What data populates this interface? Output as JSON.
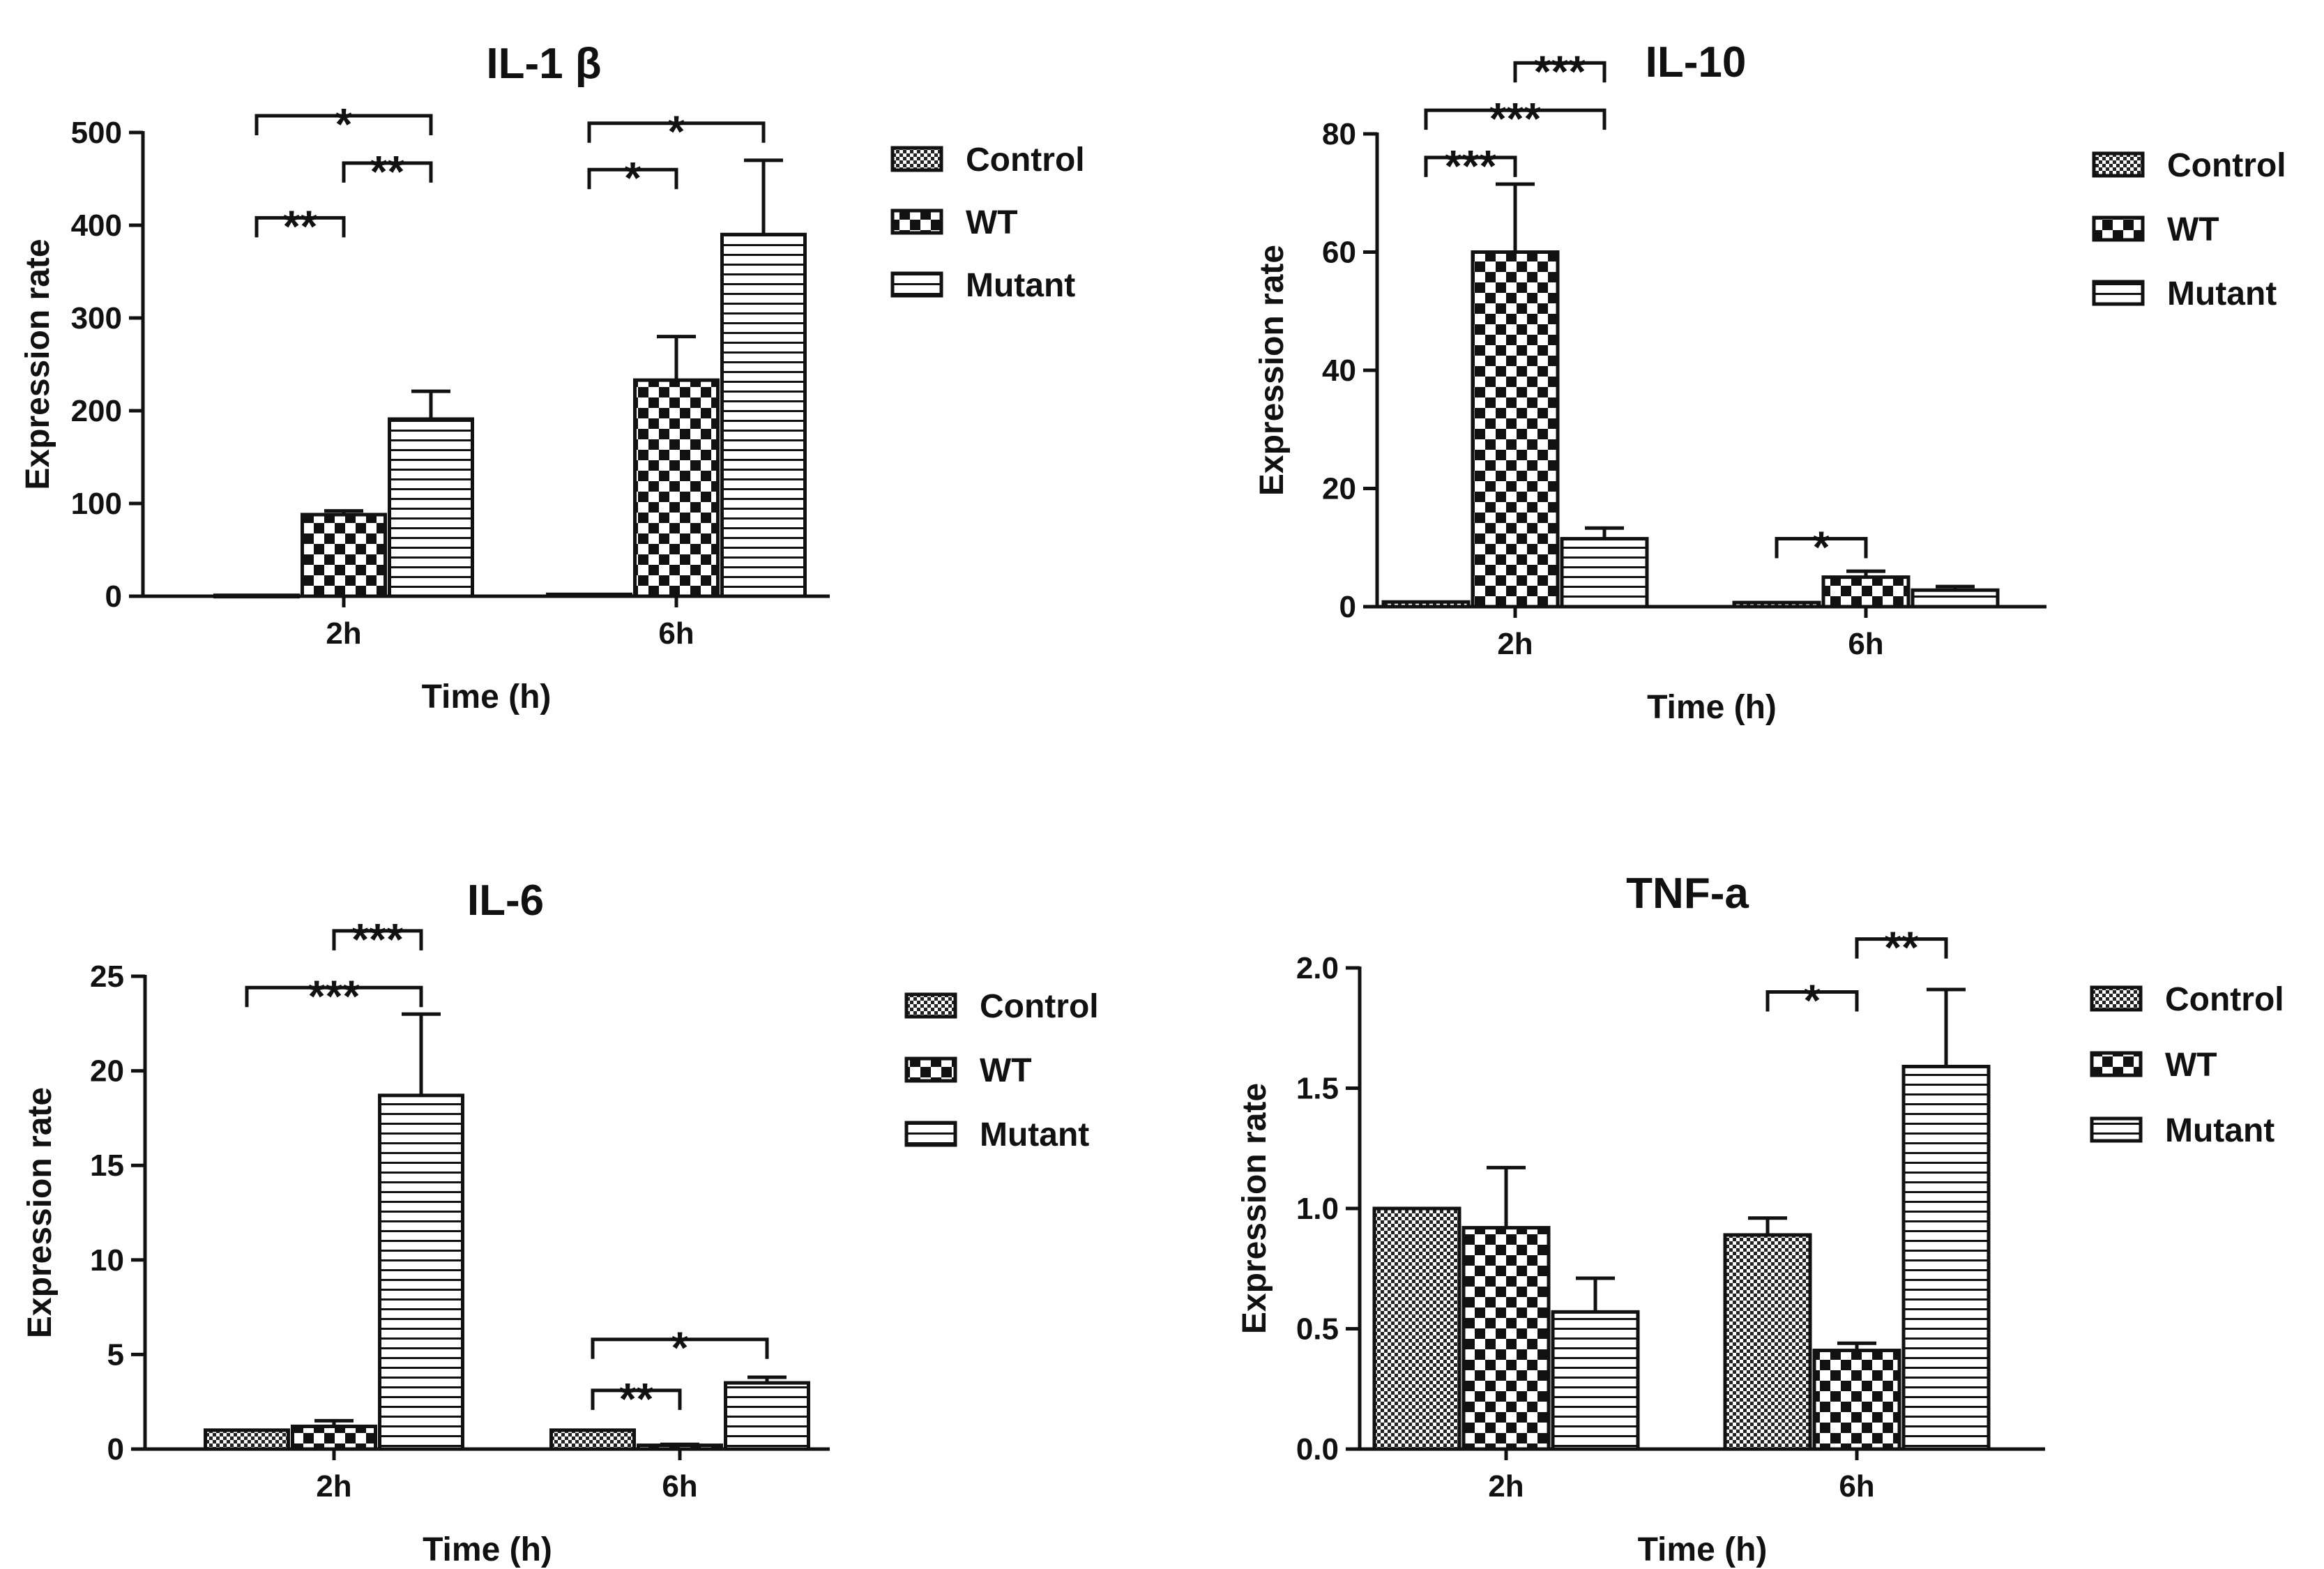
{
  "legend_labels": [
    "Control",
    "WT",
    "Mutant"
  ],
  "chart_data": [
    {
      "type": "bar",
      "title": "IL-1 β",
      "xlabel": "Time (h)",
      "ylabel": "Expression rate",
      "categories": [
        "2h",
        "6h"
      ],
      "ylim": [
        0,
        500
      ],
      "yticks": [
        "0",
        "100",
        "200",
        "300",
        "400",
        "500"
      ],
      "series": [
        {
          "name": "Control",
          "values": [
            1,
            2
          ],
          "errors": [
            0,
            0
          ]
        },
        {
          "name": "WT",
          "values": [
            88,
            233
          ],
          "errors": [
            4,
            47
          ]
        },
        {
          "name": "Mutant",
          "values": [
            191,
            390
          ],
          "errors": [
            30,
            80
          ]
        }
      ],
      "significance": [
        {
          "group": 0,
          "from": 0,
          "to": 1,
          "y": 408,
          "label": "**"
        },
        {
          "group": 0,
          "from": 1,
          "to": 2,
          "y": 467,
          "label": "**"
        },
        {
          "group": 0,
          "from": 0,
          "to": 2,
          "y": 518,
          "label": "*"
        },
        {
          "group": 1,
          "from": 0,
          "to": 1,
          "y": 460,
          "label": "*"
        },
        {
          "group": 1,
          "from": 0,
          "to": 2,
          "y": 510,
          "label": "*"
        }
      ]
    },
    {
      "type": "bar",
      "title": "IL-10",
      "xlabel": "Time (h)",
      "ylabel": "Expression rate",
      "categories": [
        "2h",
        "6h"
      ],
      "ylim": [
        0,
        80
      ],
      "yticks": [
        "0",
        "20",
        "40",
        "60",
        "80"
      ],
      "series": [
        {
          "name": "Control",
          "values": [
            0.8,
            0.7
          ],
          "errors": [
            0,
            0
          ]
        },
        {
          "name": "WT",
          "values": [
            60,
            5
          ],
          "errors": [
            11.5,
            1
          ]
        },
        {
          "name": "Mutant",
          "values": [
            11.5,
            2.8
          ],
          "errors": [
            1.8,
            0.6
          ]
        }
      ],
      "significance": [
        {
          "group": 0,
          "from": 0,
          "to": 1,
          "y": 76,
          "label": "***"
        },
        {
          "group": 0,
          "from": 0,
          "to": 2,
          "y": 84,
          "label": "***"
        },
        {
          "group": 0,
          "from": 1,
          "to": 2,
          "y": 92,
          "label": "***"
        },
        {
          "group": 1,
          "from": 0,
          "to": 1,
          "y": 11.5,
          "label": "*"
        }
      ]
    },
    {
      "type": "bar",
      "title": "IL-6",
      "xlabel": "Time (h)",
      "ylabel": "Expression rate",
      "categories": [
        "2h",
        "6h"
      ],
      "ylim": [
        0,
        25
      ],
      "yticks": [
        "0",
        "5",
        "10",
        "15",
        "20",
        "25"
      ],
      "series": [
        {
          "name": "Control",
          "values": [
            1,
            1
          ],
          "errors": [
            0,
            0
          ]
        },
        {
          "name": "WT",
          "values": [
            1.2,
            0.2
          ],
          "errors": [
            0.3,
            0.05
          ]
        },
        {
          "name": "Mutant",
          "values": [
            18.7,
            3.5
          ],
          "errors": [
            4.3,
            0.3
          ]
        }
      ],
      "significance": [
        {
          "group": 0,
          "from": 0,
          "to": 2,
          "y": 24.4,
          "label": "***"
        },
        {
          "group": 0,
          "from": 1,
          "to": 2,
          "y": 27.4,
          "label": "***"
        },
        {
          "group": 1,
          "from": 0,
          "to": 1,
          "y": 3.1,
          "label": "**"
        },
        {
          "group": 1,
          "from": 0,
          "to": 2,
          "y": 5.8,
          "label": "*"
        }
      ]
    },
    {
      "type": "bar",
      "title": "TNF-a",
      "xlabel": "Time (h)",
      "ylabel": "Expression rate",
      "categories": [
        "2h",
        "6h"
      ],
      "ylim": [
        0,
        2.0
      ],
      "yticks": [
        "0.0",
        "0.5",
        "1.0",
        "1.5",
        "2.0"
      ],
      "series": [
        {
          "name": "Control",
          "values": [
            1.0,
            0.89
          ],
          "errors": [
            0,
            0.07
          ]
        },
        {
          "name": "WT",
          "values": [
            0.92,
            0.41
          ],
          "errors": [
            0.25,
            0.03
          ]
        },
        {
          "name": "Mutant",
          "values": [
            0.57,
            1.59
          ],
          "errors": [
            0.14,
            0.32
          ]
        }
      ],
      "significance": [
        {
          "group": 1,
          "from": 0,
          "to": 1,
          "y": 1.9,
          "label": "*"
        },
        {
          "group": 1,
          "from": 1,
          "to": 2,
          "y": 2.12,
          "label": "**"
        }
      ]
    }
  ]
}
